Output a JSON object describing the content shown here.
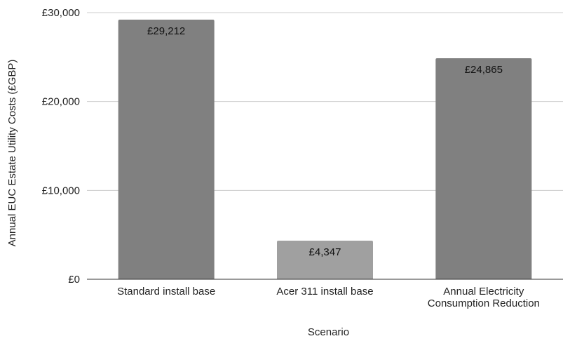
{
  "chart_data": {
    "type": "bar",
    "title": "",
    "xlabel": "Scenario",
    "ylabel": "Annual EUC Estate Utility Costs (£GBP)",
    "categories": [
      [
        "Standard install base"
      ],
      [
        "Acer 311 install base"
      ],
      [
        "Annual Electricity",
        "Consumption Reduction"
      ]
    ],
    "values": [
      29212,
      4347,
      24865
    ],
    "data_labels": [
      "£29,212",
      "£4,347",
      "£24,865"
    ],
    "bar_colors": [
      "#808080",
      "#a0a0a0",
      "#808080"
    ],
    "ylim": [
      0,
      30000
    ],
    "yticks": [
      0,
      10000,
      20000,
      30000
    ],
    "ytick_labels": [
      "£0",
      "£10,000",
      "£20,000",
      "£30,000"
    ],
    "grid": true,
    "legend": "none"
  }
}
